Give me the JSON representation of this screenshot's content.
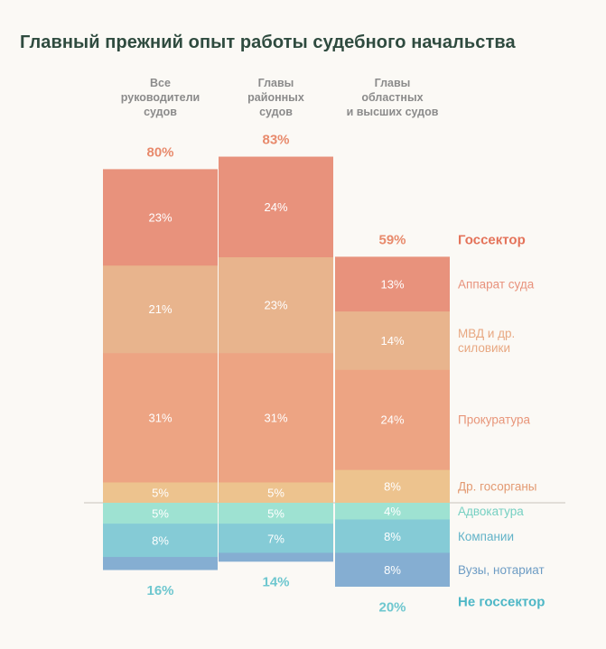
{
  "title": "Главный прежний опыт работы судебного начальства",
  "chart_data": {
    "type": "bar",
    "stacked": true,
    "title": "Главный прежний опыт работы судебного начальства",
    "groups": [
      {
        "name": "Все руководители судов",
        "header_lines": [
          "Все",
          "руководители",
          "судов"
        ],
        "gos_total": "80%",
        "nongos_total": "16%",
        "gos_values": [
          23,
          21,
          31,
          5
        ],
        "nongos_values": [
          5,
          8,
          3
        ]
      },
      {
        "name": "Главы районных судов",
        "header_lines": [
          "Главы",
          "районных",
          "судов"
        ],
        "gos_total": "83%",
        "nongos_total": "14%",
        "gos_values": [
          24,
          23,
          31,
          5
        ],
        "nongos_values": [
          5,
          7,
          2
        ]
      },
      {
        "name": "Главы областных и высших судов",
        "header_lines": [
          "Главы",
          "областных",
          "и высших судов"
        ],
        "gos_total": "59%",
        "nongos_total": "20%",
        "gos_values": [
          13,
          14,
          24,
          8
        ],
        "nongos_values": [
          4,
          8,
          8
        ]
      }
    ],
    "gos_categories": [
      {
        "label_lines": [
          "Аппарат суда"
        ],
        "color": "#e8927c",
        "label_color": "#e8927c"
      },
      {
        "label_lines": [
          "МВД и др.",
          "силовики"
        ],
        "color": "#e8b48d",
        "label_color": "#e8a882"
      },
      {
        "label_lines": [
          "Прокуратура"
        ],
        "color": "#eda483",
        "label_color": "#e8967a"
      },
      {
        "label_lines": [
          "Др. госорганы"
        ],
        "color": "#edc38e",
        "label_color": "#e39a72"
      }
    ],
    "nongos_categories": [
      {
        "label_lines": [
          "Адвокатура"
        ],
        "color": "#9ee2d2",
        "label_color": "#76d0c2"
      },
      {
        "label_lines": [
          "Компании"
        ],
        "color": "#85cbd6",
        "label_color": "#62b3c8"
      },
      {
        "label_lines": [
          "Вузы, нотариат"
        ],
        "color": "#85aed2",
        "label_color": "#6d9cc4"
      }
    ],
    "show_value_label_min": 4,
    "gos_group_label": "Госсектор",
    "nongos_group_label": "Не госсектор"
  }
}
